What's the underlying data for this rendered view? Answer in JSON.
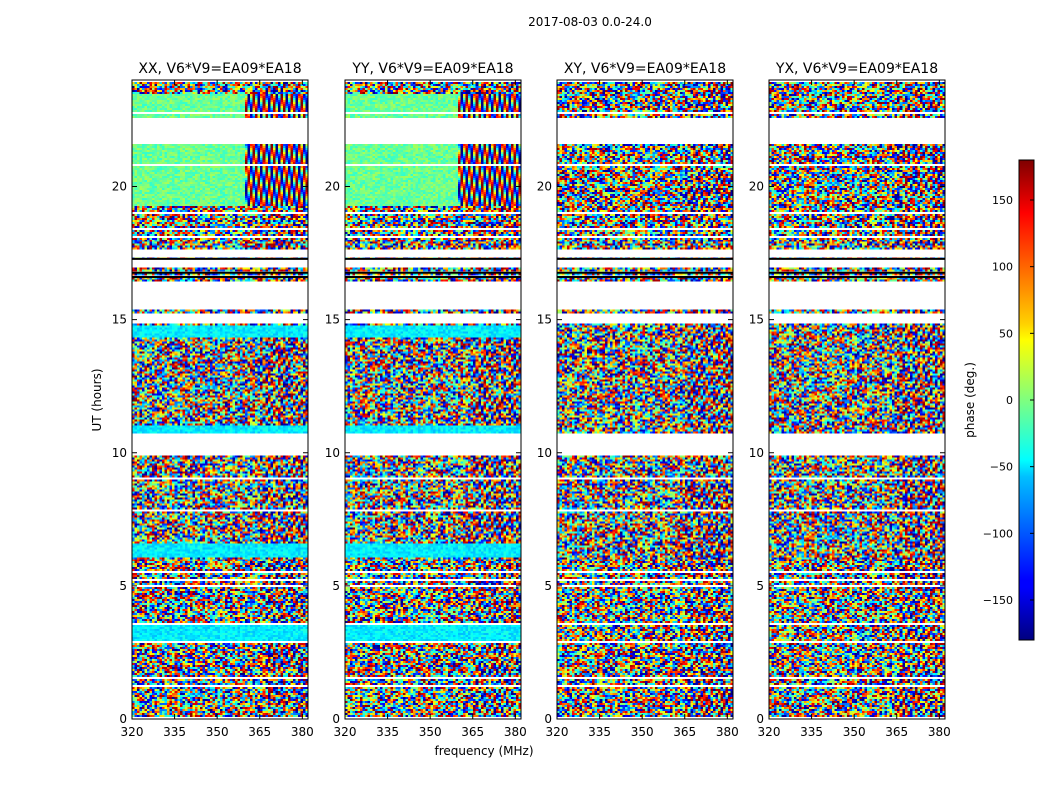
{
  "figure_title": "2017-08-03 0.0-24.0",
  "chart_data": {
    "type": "heatmap",
    "suptitle": "2017-08-03 0.0-24.0",
    "xlabel": "frequency (MHz)",
    "ylabel": "UT (hours)",
    "xlim": [
      320,
      382
    ],
    "ylim": [
      0,
      24
    ],
    "xticks": [
      320,
      335,
      350,
      365,
      380
    ],
    "yticks": [
      0,
      5,
      10,
      15,
      20
    ],
    "panels": [
      {
        "title": "XX, V6*V9=EA09*EA18",
        "pol": "XX"
      },
      {
        "title": "YY, V6*V9=EA09*EA18",
        "pol": "YY"
      },
      {
        "title": "XY, V6*V9=EA09*EA18",
        "pol": "XY"
      },
      {
        "title": "YX, V6*V9=EA09*EA18",
        "pol": "YX"
      }
    ],
    "colorbar": {
      "label": "phase (deg.)",
      "range": [
        -180,
        180
      ],
      "ticks": [
        -150,
        -100,
        -50,
        0,
        50,
        100,
        150
      ],
      "colormap": "jet"
    },
    "flagged_ut_ranges": [
      [
        0.0,
        0.06
      ],
      [
        1.2,
        1.26
      ],
      [
        1.48,
        1.54
      ],
      [
        2.82,
        2.92
      ],
      [
        3.05,
        3.1
      ],
      [
        3.55,
        3.62
      ],
      [
        4.95,
        5.02
      ],
      [
        5.2,
        5.28
      ],
      [
        5.45,
        5.52
      ],
      [
        6.05,
        6.1
      ],
      [
        7.1,
        7.16
      ],
      [
        7.8,
        7.85
      ],
      [
        8.3,
        8.36
      ],
      [
        9.0,
        9.05
      ],
      [
        9.35,
        9.4
      ],
      [
        9.9,
        10.7
      ],
      [
        14.88,
        15.2
      ],
      [
        15.35,
        16.45
      ],
      [
        16.55,
        16.62
      ],
      [
        16.72,
        16.8
      ],
      [
        16.92,
        17.25
      ],
      [
        17.35,
        17.6
      ],
      [
        18.05,
        18.12
      ],
      [
        18.4,
        18.48
      ],
      [
        19.0,
        19.06
      ],
      [
        20.78,
        20.86
      ],
      [
        21.6,
        22.6
      ],
      [
        22.72,
        22.8
      ],
      [
        23.9,
        24.0
      ]
    ]
  }
}
